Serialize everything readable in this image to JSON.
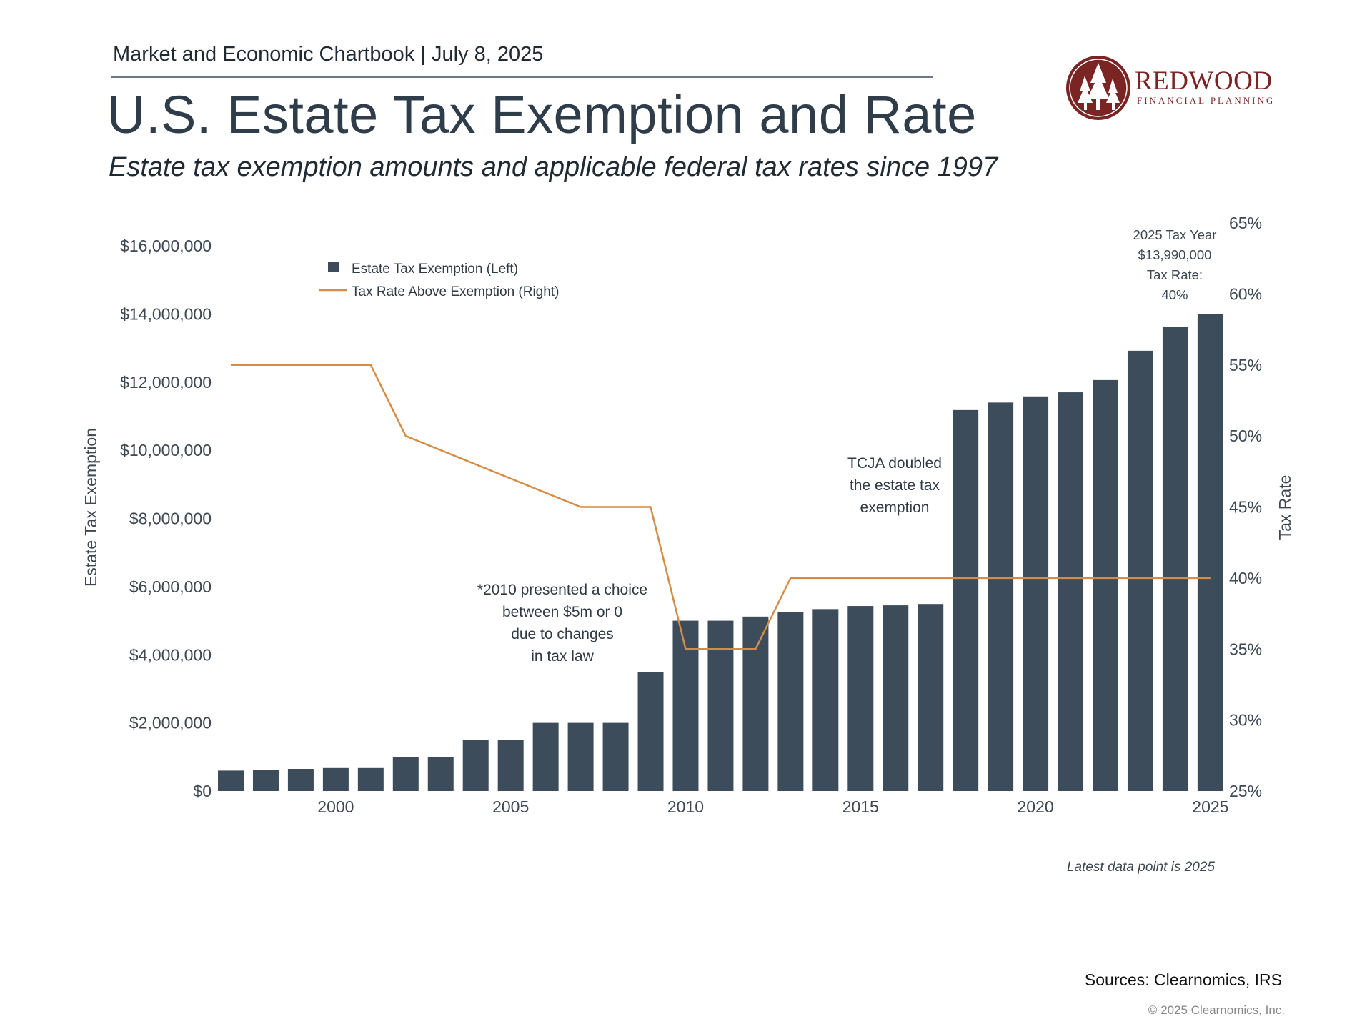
{
  "header": {
    "publication": "Market and Economic Chartbook | July 8, 2025",
    "title": "U.S. Estate Tax Exemption and Rate",
    "subtitle": "Estate tax exemption amounts and applicable federal tax rates since 1997"
  },
  "logo": {
    "word": "REDWOOD",
    "sub": "FINANCIAL PLANNING",
    "icon": "redwood-trees-icon",
    "color": "#7a2424"
  },
  "chart_data": {
    "type": "bar",
    "x": [
      1997,
      1998,
      1999,
      2000,
      2001,
      2002,
      2003,
      2004,
      2005,
      2006,
      2007,
      2008,
      2009,
      2010,
      2011,
      2012,
      2013,
      2014,
      2015,
      2016,
      2017,
      2018,
      2019,
      2020,
      2021,
      2022,
      2023,
      2024,
      2025
    ],
    "series": [
      {
        "name": "Estate Tax Exemption (Left)",
        "type": "bar",
        "axis": "left",
        "color": "#3d4c5a",
        "values": [
          600000,
          625000,
          650000,
          675000,
          675000,
          1000000,
          1000000,
          1500000,
          1500000,
          2000000,
          2000000,
          2000000,
          3500000,
          5000000,
          5000000,
          5120000,
          5250000,
          5340000,
          5430000,
          5450000,
          5490000,
          11180000,
          11400000,
          11580000,
          11700000,
          12060000,
          12920000,
          13610000,
          13990000
        ]
      },
      {
        "name": "Tax Rate Above Exemption (Right)",
        "type": "line",
        "axis": "right",
        "color": "#d48c46",
        "values": [
          55,
          55,
          55,
          55,
          55,
          50,
          49,
          48,
          47,
          46,
          45,
          45,
          45,
          35,
          35,
          35,
          40,
          40,
          40,
          40,
          40,
          40,
          40,
          40,
          40,
          40,
          40,
          40,
          40
        ]
      }
    ],
    "xticks": [
      2000,
      2005,
      2010,
      2015,
      2020,
      2025
    ],
    "ylabel_left": "Estate Tax Exemption",
    "ylabel_right": "Tax Rate",
    "ylim_left": [
      0,
      16000000
    ],
    "ylim_right": [
      25,
      65
    ],
    "yticks_left": [
      "$0",
      "$2,000,000",
      "$4,000,000",
      "$6,000,000",
      "$8,000,000",
      "$10,000,000",
      "$12,000,000",
      "$14,000,000",
      "$16,000,000"
    ],
    "yticks_right": [
      "25%",
      "30%",
      "35%",
      "40%",
      "45%",
      "50%",
      "55%",
      "60%",
      "65%"
    ],
    "legend": [
      "Estate Tax Exemption (Left)",
      "Tax Rate Above Exemption (Right)"
    ],
    "legend_position": "top-left",
    "grid": false,
    "annotations": {
      "note_2010": [
        "*2010 presented a choice",
        "between $5m or 0",
        "due to changes",
        "in tax law"
      ],
      "tcja": [
        "TCJA doubled",
        "the estate tax",
        "exemption"
      ],
      "latest": [
        "2025 Tax Year",
        "$13,990,000",
        "Tax Rate:",
        "40%"
      ],
      "latest_data_note": "Latest data point is 2025"
    }
  },
  "footer": {
    "sources": "Sources: Clearnomics, IRS",
    "copyright": "© 2025 Clearnomics, Inc."
  }
}
